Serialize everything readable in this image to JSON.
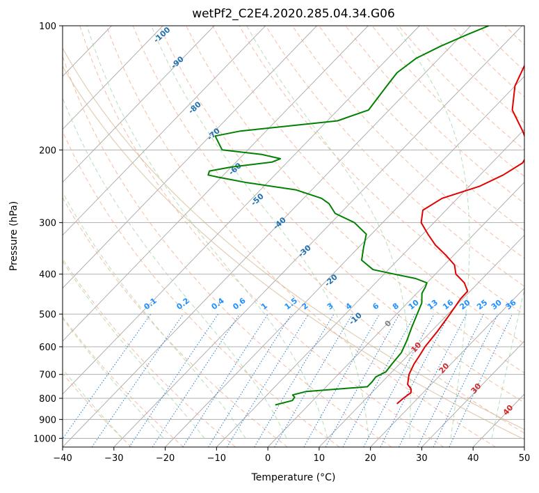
{
  "chart_data": {
    "type": "line",
    "title": "wetPf2_C2E4.2020.285.04.34.G06",
    "xlabel": "Temperature (°C)",
    "ylabel": "Pressure (hPa)",
    "xlim": [
      -40,
      50
    ],
    "ylim": [
      1050,
      100
    ],
    "yscale": "log",
    "skew": true,
    "grid": true,
    "xticks": [
      -40,
      -30,
      -20,
      -10,
      0,
      10,
      20,
      30,
      40,
      50
    ],
    "yticks": [
      100,
      200,
      300,
      400,
      500,
      600,
      700,
      800,
      900,
      1000
    ],
    "series": [
      {
        "color": "#e00000",
        "points": [
          [
            825,
            17.0
          ],
          [
            800,
            17.2
          ],
          [
            775,
            17.6
          ],
          [
            760,
            17.0
          ],
          [
            740,
            15.4
          ],
          [
            700,
            13.8
          ],
          [
            660,
            12.8
          ],
          [
            630,
            12.3
          ],
          [
            600,
            11.7
          ],
          [
            550,
            11.2
          ],
          [
            500,
            10.4
          ],
          [
            460,
            9.6
          ],
          [
            440,
            9.5
          ],
          [
            420,
            7.3
          ],
          [
            400,
            4.0
          ],
          [
            380,
            2.0
          ],
          [
            360,
            -1.5
          ],
          [
            340,
            -5.5
          ],
          [
            320,
            -9.0
          ],
          [
            300,
            -12.5
          ],
          [
            280,
            -14.5
          ],
          [
            262,
            -13.0
          ],
          [
            245,
            -8.0
          ],
          [
            230,
            -5.5
          ],
          [
            215,
            -4.0
          ],
          [
            200,
            -5.0
          ],
          [
            180,
            -10.0
          ],
          [
            160,
            -16.0
          ],
          [
            140,
            -20.0
          ],
          [
            125,
            -22.0
          ],
          [
            115,
            -21.5
          ],
          [
            105,
            -20.5
          ],
          [
            100,
            -20.0
          ]
        ]
      },
      {
        "color": "#008000",
        "points": [
          [
            830,
            -6.5
          ],
          [
            810,
            -4.0
          ],
          [
            795,
            -4.2
          ],
          [
            785,
            -5.0
          ],
          [
            770,
            -3.0
          ],
          [
            750,
            8.0
          ],
          [
            730,
            8.0
          ],
          [
            710,
            7.8
          ],
          [
            690,
            8.8
          ],
          [
            660,
            8.5
          ],
          [
            620,
            8.2
          ],
          [
            580,
            7.0
          ],
          [
            540,
            5.5
          ],
          [
            500,
            4.0
          ],
          [
            470,
            2.8
          ],
          [
            445,
            1.0
          ],
          [
            430,
            0.5
          ],
          [
            420,
            0.0
          ],
          [
            410,
            -3.0
          ],
          [
            400,
            -8.0
          ],
          [
            390,
            -13.0
          ],
          [
            370,
            -17.0
          ],
          [
            345,
            -19.0
          ],
          [
            320,
            -21.0
          ],
          [
            300,
            -25.5
          ],
          [
            285,
            -31.0
          ],
          [
            270,
            -34.0
          ],
          [
            262,
            -36.5
          ],
          [
            250,
            -43.0
          ],
          [
            240,
            -54.0
          ],
          [
            233,
            -60.5
          ],
          [
            230,
            -63.0
          ],
          [
            225,
            -63.5
          ],
          [
            220,
            -60.0
          ],
          [
            214,
            -53.0
          ],
          [
            210,
            -52.0
          ],
          [
            205,
            -56.5
          ],
          [
            200,
            -65.0
          ],
          [
            185,
            -69.0
          ],
          [
            180,
            -65.0
          ],
          [
            170,
            -48.0
          ],
          [
            160,
            -44.0
          ],
          [
            140,
            -45.0
          ],
          [
            130,
            -45.5
          ],
          [
            120,
            -44.5
          ],
          [
            112,
            -42.0
          ],
          [
            105,
            -39.0
          ],
          [
            100,
            -36.5
          ]
        ]
      }
    ],
    "dry_adiabat_labels": [
      "-100",
      "-90",
      "-80",
      "-70",
      "-60",
      "-50",
      "-40",
      "-30",
      "-20",
      "-10"
    ],
    "dry_adiabat_label_color": "#1f6fb0",
    "mixing_ratio_labels": [
      "0.1",
      "0.2",
      "0.4",
      "0.6",
      "1",
      "1.5",
      "2",
      "3",
      "4",
      "6",
      "8",
      "10",
      "13",
      "16",
      "20",
      "25",
      "30",
      "36"
    ],
    "mixing_ratio_label_color": "#1e90ff",
    "moist_adiabat_labels": [
      "0",
      "10",
      "20",
      "30",
      "40"
    ],
    "moist_adiabat_label_colors": [
      "#808080",
      "#d62728",
      "#d62728",
      "#d62728",
      "#d62728"
    ]
  }
}
